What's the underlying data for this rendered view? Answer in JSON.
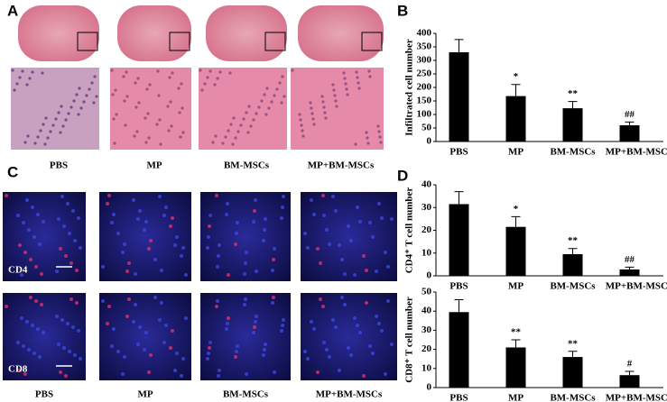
{
  "panels": [
    "A",
    "B",
    "C",
    "D"
  ],
  "panel_a": {
    "captions": [
      "PBS",
      "MP",
      "BM-MSCs",
      "MP+BM-MSCs"
    ]
  },
  "panel_c": {
    "captions": [
      "PBS",
      "MP",
      "BM-MSCs",
      "MP+BM-MSCs"
    ],
    "rows": [
      "CD4",
      "CD8"
    ]
  },
  "chart_data": [
    {
      "type": "bar",
      "ylabel": "Infiltrated cell number",
      "categories": [
        "PBS",
        "MP",
        "BM-MSCs",
        "MP+BM-MSCs"
      ],
      "values": [
        330,
        168,
        123,
        60
      ],
      "errors": [
        47,
        43,
        25,
        12
      ],
      "annotations": [
        "*",
        "**",
        "##"
      ],
      "color": "#000000",
      "ylim": [
        0,
        400
      ],
      "yticks": [
        0,
        50,
        100,
        150,
        200,
        250,
        300,
        350,
        400
      ]
    },
    {
      "type": "bar",
      "ylabel": "CD4⁺ T cell number",
      "categories": [
        "PBS",
        "MP",
        "BM-MSCs",
        "MP+BM-MSCs"
      ],
      "values": [
        31.5,
        21.5,
        9.5,
        2.8
      ],
      "errors": [
        5.5,
        4.5,
        2.5,
        1
      ],
      "annotations": [
        "*",
        "**",
        "##"
      ],
      "color": "#000000",
      "ylim": [
        0,
        40
      ],
      "yticks": [
        0,
        10,
        20,
        30,
        40
      ]
    },
    {
      "type": "bar",
      "ylabel": "CD8⁺ T cell number",
      "categories": [
        "PBS",
        "MP",
        "BM-MSCs",
        "MP+BM-MSCs"
      ],
      "values": [
        39.5,
        21,
        16,
        6.5
      ],
      "errors": [
        6.5,
        4,
        3,
        2
      ],
      "annotations": [
        "**",
        "**",
        "#"
      ],
      "color": "#000000",
      "ylim": [
        0,
        50
      ],
      "yticks": [
        0,
        10,
        20,
        30,
        40,
        50
      ]
    }
  ]
}
